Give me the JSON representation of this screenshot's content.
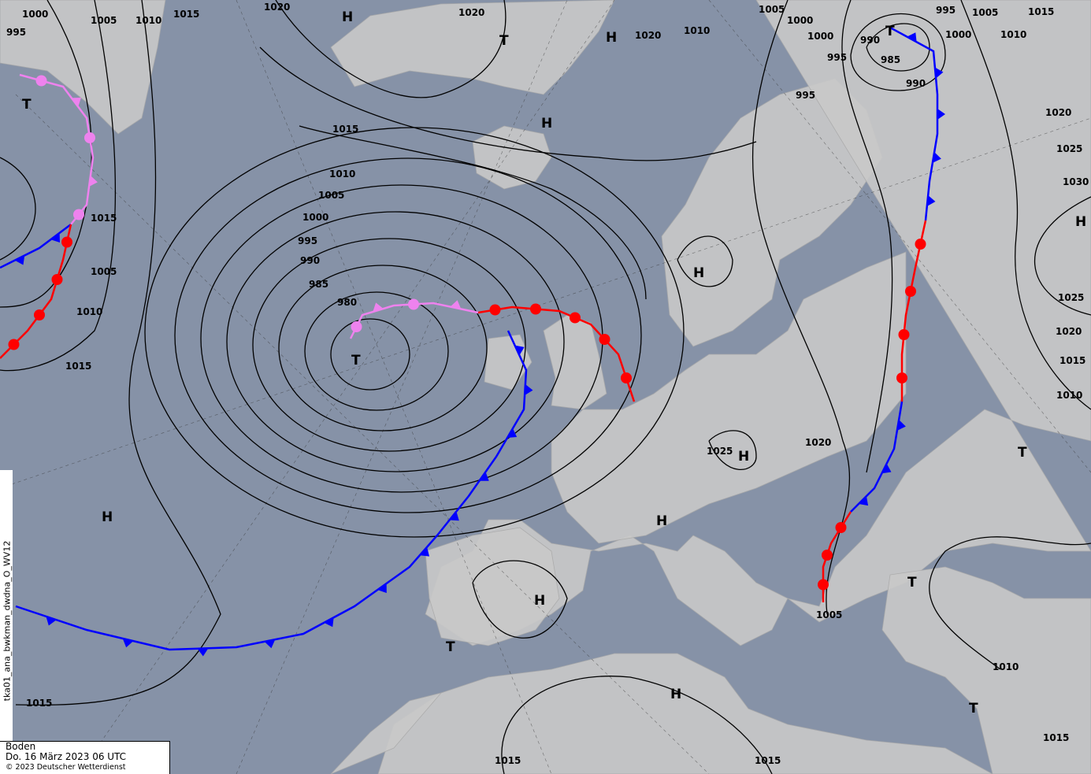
{
  "map": {
    "colors": {
      "sea": "#8692a7",
      "land": "#c9c9c9",
      "cold_front": "#0000ff",
      "warm_front": "#ff0000",
      "occlusion": "#ee82ee",
      "isobar": "#000000"
    },
    "isobar_labels": [
      "1000",
      "995",
      "1005",
      "1010",
      "1015",
      "1020",
      "1020",
      "1015",
      "1010",
      "1005",
      "1000",
      "995",
      "990",
      "985",
      "980",
      "1005",
      "1010",
      "1015",
      "1015",
      "995",
      "1000",
      "1020",
      "1010",
      "1005",
      "1000",
      "995",
      "990",
      "985",
      "990",
      "995",
      "1005",
      "1000",
      "1010",
      "1015",
      "1020",
      "1025",
      "1030",
      "1025",
      "1020",
      "1015",
      "1010",
      "1020",
      "1025",
      "1005",
      "1010",
      "1015",
      "1015",
      "1015",
      "1015"
    ],
    "pressure_centers": [
      "H",
      "T",
      "H",
      "T",
      "T",
      "H",
      "H",
      "H",
      "T",
      "H",
      "H",
      "H",
      "T",
      "T",
      "T",
      "H",
      "H",
      "T"
    ]
  },
  "side_label": "tka01_ana_bwkman_dwdna_O_WV12",
  "info": {
    "level": "Boden",
    "datetime": "Do. 16 März 2023 06 UTC",
    "copyright": "© 2023 Deutscher Wetterdienst"
  }
}
